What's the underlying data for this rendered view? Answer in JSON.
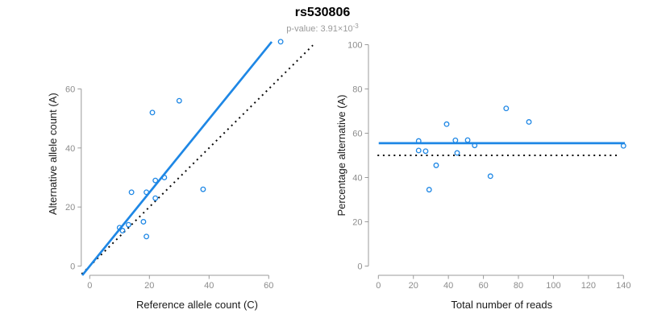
{
  "header": {
    "title": "rs530806",
    "subtitle_text": "p-value: 3.91×10",
    "subtitle_exponent": "-3"
  },
  "colors": {
    "accent_blue": "#1E87E5",
    "dotted_black": "#0a0a0a",
    "axis_gray": "#9b9b9b",
    "tick_label_gray": "#8c8c8c",
    "axis_title_color": "#1a1a1a"
  },
  "chart_data": [
    {
      "type": "scatter",
      "panel": "left",
      "xlabel": "Reference allele count (C)",
      "ylabel": "Alternative allele count (A)",
      "x": [
        10,
        11,
        13,
        14,
        18,
        19,
        19,
        21,
        22,
        22,
        25,
        30,
        38,
        64
      ],
      "y": [
        13,
        12,
        14,
        25,
        15,
        10,
        25,
        52,
        23,
        29,
        30,
        56,
        26,
        76
      ],
      "xticks": [
        0,
        20,
        40,
        60
      ],
      "yticks": [
        0,
        20,
        40,
        60
      ],
      "xlim": [
        0,
        72
      ],
      "ylim": [
        0,
        76
      ],
      "grid": false,
      "legend": "none",
      "fit_line": {
        "type": "proportional",
        "slope": 1.2454,
        "x_range": [
          -2.5,
          61
        ]
      },
      "reference_line": {
        "type": "identity",
        "style": "dotted",
        "range": [
          -2.7,
          74.8
        ]
      }
    },
    {
      "type": "scatter",
      "panel": "right",
      "xlabel": "Total number of reads",
      "ylabel": "Percentage alternative (A)",
      "x": [
        23,
        23,
        27,
        39,
        33,
        29,
        44,
        73,
        45,
        51,
        55,
        86,
        64,
        140
      ],
      "y": [
        56.5,
        52.2,
        51.9,
        64.1,
        45.5,
        34.5,
        56.8,
        71.2,
        51.1,
        56.9,
        54.5,
        65.1,
        40.6,
        54.3
      ],
      "xticks": [
        0,
        20,
        40,
        60,
        80,
        100,
        120,
        140
      ],
      "yticks": [
        0,
        20,
        40,
        60,
        80,
        100
      ],
      "xlim": [
        0,
        140.9
      ],
      "ylim": [
        0,
        100
      ],
      "grid": false,
      "legend": "none",
      "fit_line": {
        "type": "horizontal",
        "value": 55.5,
        "x_range": [
          0.2,
          140.8
        ]
      },
      "reference_line": {
        "type": "horizontal",
        "style": "dotted",
        "value": 50,
        "x_range": [
          -0.5,
          137
        ]
      }
    }
  ]
}
